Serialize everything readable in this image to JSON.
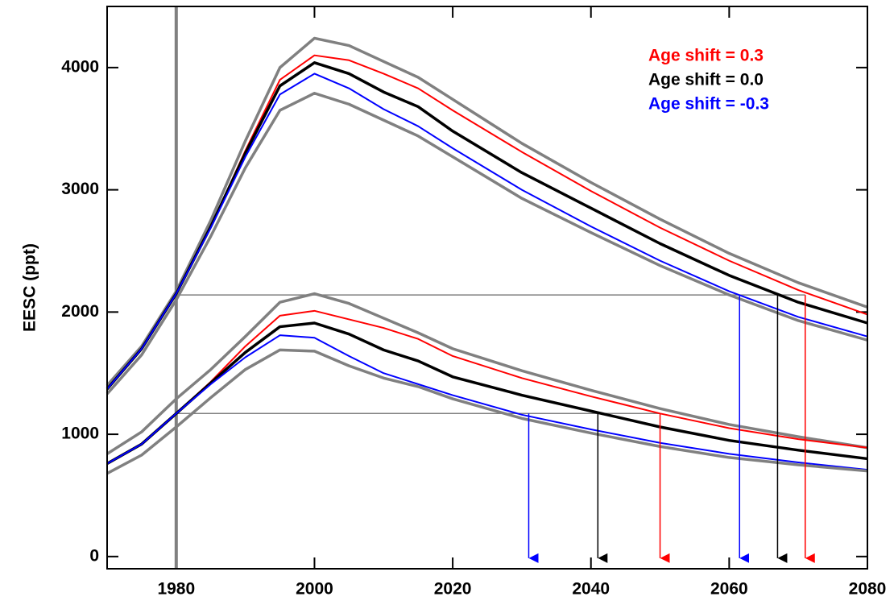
{
  "chart_data": {
    "type": "line",
    "y_label": "EESC (ppt)",
    "x": [
      1970,
      1975,
      1980,
      1985,
      1990,
      1995,
      2000,
      2005,
      2010,
      2015,
      2020,
      2030,
      2040,
      2050,
      2060,
      2070,
      2080
    ],
    "series": [
      {
        "color": "#808080",
        "values": [
          1400,
          1720,
          2170,
          2750,
          3400,
          4000,
          4240,
          4180,
          4050,
          3920,
          3740,
          3380,
          3060,
          2760,
          2480,
          2240,
          2040
        ]
      },
      {
        "name": "Age shift = 0.3",
        "color": "#ff0000",
        "values": [
          1370,
          1700,
          2150,
          2700,
          3320,
          3900,
          4100,
          4060,
          3950,
          3830,
          3650,
          3310,
          2990,
          2690,
          2420,
          2180,
          1980
        ]
      },
      {
        "name": "Age shift = 0.0",
        "color": "#000000",
        "values": [
          1370,
          1700,
          2150,
          2700,
          3300,
          3850,
          4040,
          3950,
          3800,
          3680,
          3480,
          3140,
          2850,
          2560,
          2300,
          2080,
          1910
        ]
      },
      {
        "name": "Age shift = -0.3",
        "color": "#0000ff",
        "values": [
          1370,
          1700,
          2150,
          2690,
          3270,
          3780,
          3950,
          3830,
          3660,
          3520,
          3340,
          3000,
          2700,
          2420,
          2170,
          1960,
          1800
        ]
      },
      {
        "color": "#808080",
        "values": [
          1330,
          1650,
          2100,
          2620,
          3180,
          3650,
          3790,
          3700,
          3570,
          3440,
          3270,
          2930,
          2650,
          2380,
          2140,
          1930,
          1770
        ]
      },
      {
        "color": "#808080",
        "values": [
          840,
          1020,
          1290,
          1530,
          1800,
          2080,
          2150,
          2070,
          1950,
          1830,
          1700,
          1520,
          1360,
          1210,
          1080,
          980,
          890
        ]
      },
      {
        "color": "#ff0000",
        "values": [
          760,
          920,
          1170,
          1430,
          1720,
          1970,
          2010,
          1940,
          1870,
          1780,
          1640,
          1460,
          1310,
          1170,
          1050,
          960,
          890
        ]
      },
      {
        "color": "#000000",
        "values": [
          760,
          920,
          1170,
          1420,
          1670,
          1880,
          1910,
          1820,
          1690,
          1600,
          1470,
          1320,
          1190,
          1060,
          950,
          870,
          800
        ]
      },
      {
        "color": "#0000ff",
        "values": [
          760,
          920,
          1170,
          1410,
          1630,
          1810,
          1790,
          1640,
          1500,
          1410,
          1320,
          1160,
          1040,
          930,
          840,
          770,
          710
        ]
      },
      {
        "color": "#808080",
        "values": [
          680,
          830,
          1060,
          1300,
          1530,
          1690,
          1680,
          1560,
          1460,
          1390,
          1290,
          1130,
          1010,
          900,
          810,
          750,
          700
        ]
      }
    ],
    "vline": 1980,
    "hlines": [
      {
        "y": 2140,
        "x_end": 2071
      },
      {
        "y": 1170,
        "x_end": 2050
      }
    ],
    "arrows": [
      {
        "x": 2031,
        "y": 1170,
        "color": "#0000ff"
      },
      {
        "x": 2041,
        "y": 1170,
        "color": "#000000"
      },
      {
        "x": 2050,
        "y": 1170,
        "color": "#ff0000"
      },
      {
        "x": 2061.5,
        "y": 2140,
        "color": "#0000ff"
      },
      {
        "x": 2067,
        "y": 2140,
        "color": "#000000"
      },
      {
        "x": 2071,
        "y": 2140,
        "color": "#ff0000"
      }
    ],
    "xlim": [
      1970,
      2080
    ],
    "ylim": [
      -100,
      4500
    ],
    "xticks": [
      1980,
      2000,
      2020,
      2040,
      2060,
      2080
    ],
    "yticks": [
      0,
      1000,
      2000,
      3000,
      4000
    ],
    "legend": "upper right"
  }
}
